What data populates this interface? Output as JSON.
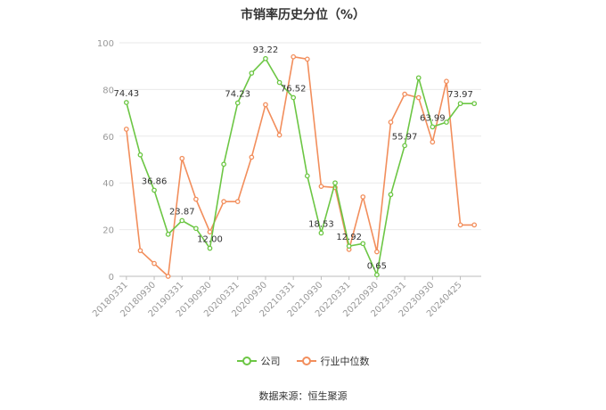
{
  "title": "市销率历史分位（%）",
  "source_text": "数据来源：恒生聚源",
  "colors": {
    "company": "#6cc644",
    "industry": "#f28e5c",
    "grid": "#e9e9e9",
    "axis": "#bbbbbb",
    "text": "#333333",
    "tick": "#999999"
  },
  "chart_data": {
    "type": "line",
    "title": "市销率历史分位（%）",
    "ylim": [
      0,
      100
    ],
    "yticks": [
      0,
      20,
      40,
      60,
      80,
      100
    ],
    "grid": true,
    "legend_position": "bottom",
    "xtick_labels": [
      "20180331",
      "20180930",
      "20190331",
      "20190930",
      "20200331",
      "20200930",
      "20210331",
      "20210930",
      "20220331",
      "20220930",
      "20230331",
      "20230930",
      "20240425"
    ],
    "xtick_indices": [
      0,
      2,
      4,
      6,
      8,
      10,
      12,
      14,
      16,
      18,
      20,
      22,
      24
    ],
    "num_points": 26,
    "series": [
      {
        "name": "公司",
        "values": [
          74.43,
          52,
          36.86,
          18,
          23.87,
          20.5,
          12.0,
          48,
          74.23,
          87,
          93.22,
          83,
          76.52,
          43,
          18.53,
          40,
          12.92,
          14,
          0.65,
          35,
          55.97,
          85,
          63.99,
          66,
          73.97,
          73.97
        ],
        "labels": [
          {
            "index": 0,
            "text": "74.43"
          },
          {
            "index": 2,
            "text": "36.86"
          },
          {
            "index": 4,
            "text": "23.87"
          },
          {
            "index": 6,
            "text": "12.00"
          },
          {
            "index": 8,
            "text": "74.23"
          },
          {
            "index": 10,
            "text": "93.22"
          },
          {
            "index": 12,
            "text": "76.52"
          },
          {
            "index": 14,
            "text": "18.53"
          },
          {
            "index": 16,
            "text": "12.92"
          },
          {
            "index": 18,
            "text": "0.65"
          },
          {
            "index": 20,
            "text": "55.97"
          },
          {
            "index": 22,
            "text": "63.99"
          },
          {
            "index": 24,
            "text": "73.97"
          }
        ]
      },
      {
        "name": "行业中位数",
        "values": [
          63,
          11,
          5.5,
          0,
          50.5,
          33,
          19,
          32,
          32,
          51,
          73.5,
          60.5,
          94,
          93,
          38.5,
          38,
          11.5,
          34,
          10.5,
          66,
          78,
          76.5,
          57.5,
          83.5,
          22,
          22
        ]
      }
    ]
  }
}
